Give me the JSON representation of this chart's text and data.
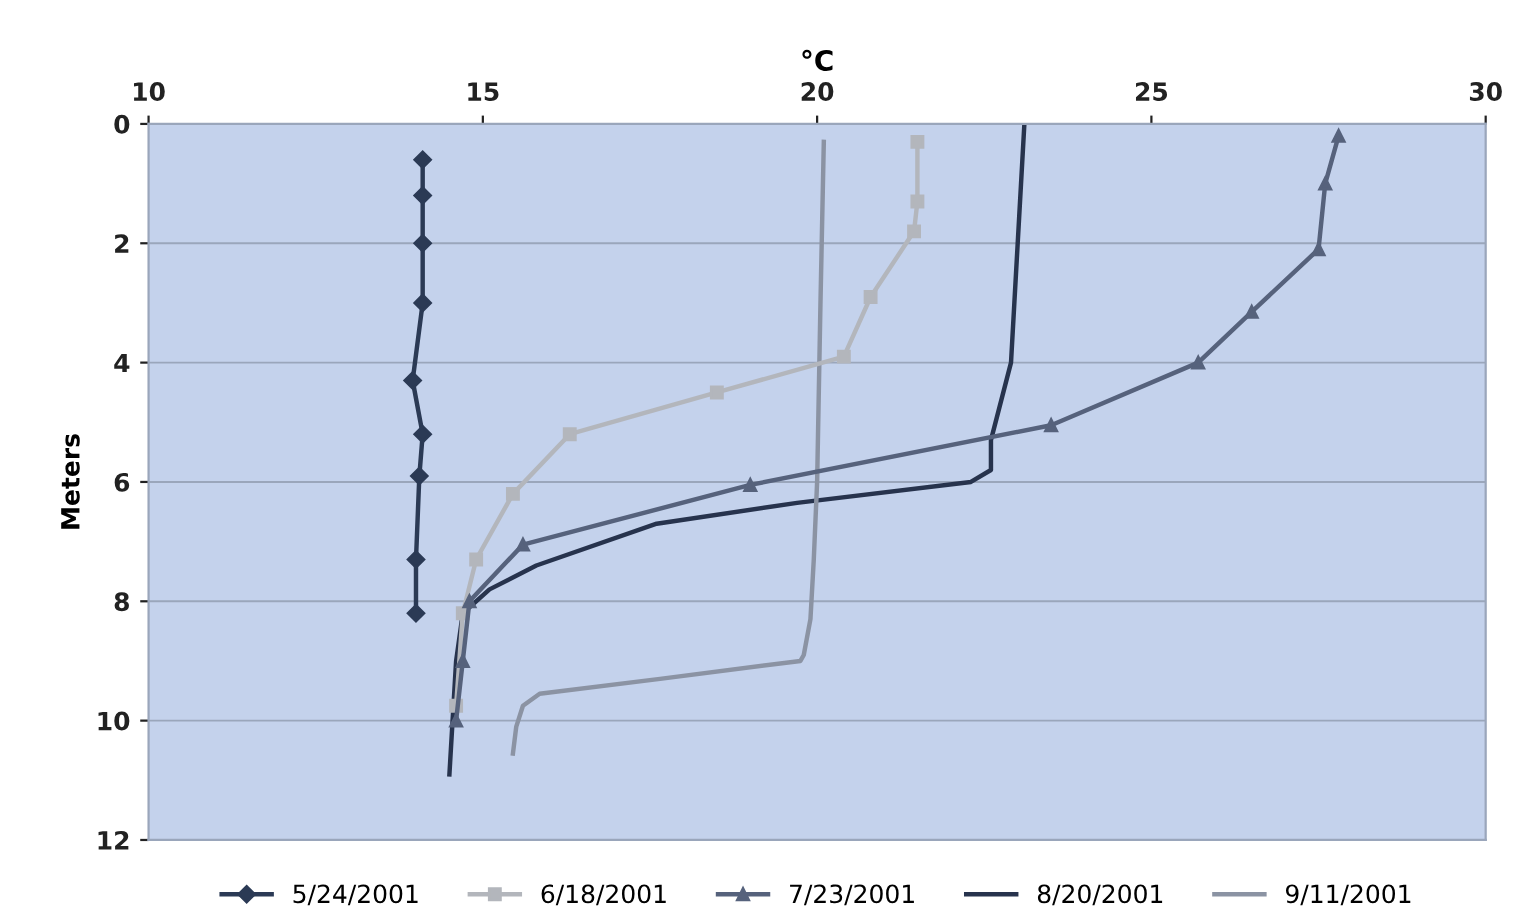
{
  "chart_data": {
    "type": "line",
    "xlabel": "°C",
    "ylabel": "Meters",
    "xlim": [
      10,
      30
    ],
    "xticks": [
      10,
      15,
      20,
      25,
      30
    ],
    "ylim": [
      12,
      0
    ],
    "yticks": [
      0,
      2,
      4,
      6,
      8,
      10,
      12
    ],
    "grid": "y",
    "legend": "bottom",
    "series": [
      {
        "name": "5/24/2001",
        "color": "#2b3a55",
        "marker": "diamond",
        "x": [
          14.1,
          14.1,
          14.1,
          14.1,
          13.95,
          14.1,
          14.05,
          14.0,
          14.0
        ],
        "values": [
          0.6,
          1.2,
          2.0,
          3.0,
          4.3,
          5.2,
          5.9,
          7.3,
          8.2
        ]
      },
      {
        "name": "6/18/2001",
        "color": "#b3b6bc",
        "marker": "square",
        "x": [
          21.5,
          21.5,
          21.45,
          20.8,
          20.4,
          18.5,
          16.3,
          15.45,
          14.9,
          14.7,
          14.6
        ],
        "values": [
          0.3,
          1.3,
          1.8,
          2.9,
          3.9,
          4.5,
          5.2,
          6.2,
          7.3,
          8.2,
          9.75
        ]
      },
      {
        "name": "7/23/2001",
        "color": "#56627c",
        "marker": "triangle",
        "x": [
          27.8,
          27.6,
          27.5,
          26.5,
          25.7,
          23.5,
          19.0,
          15.6,
          14.8,
          14.7,
          14.6
        ],
        "values": [
          0.2,
          1.0,
          2.1,
          3.15,
          4.0,
          5.05,
          6.05,
          7.05,
          8.0,
          9.0,
          10.0
        ]
      },
      {
        "name": "8/20/2001",
        "color": "#27334d",
        "marker": "none",
        "x": [
          23.1,
          23.0,
          22.9,
          22.6,
          22.6,
          22.3,
          19.7,
          17.6,
          15.8,
          15.1,
          14.7,
          14.6,
          14.5
        ],
        "values": [
          0.0,
          2.0,
          4.0,
          5.3,
          5.8,
          6.0,
          6.35,
          6.7,
          7.4,
          7.8,
          8.2,
          9.0,
          10.9
        ]
      },
      {
        "name": "9/11/2001",
        "color": "#8b93a3",
        "marker": "none",
        "x": [
          20.1,
          20.05,
          20.0,
          19.95,
          19.9,
          19.8,
          19.75,
          17.65,
          15.85,
          15.6,
          15.5,
          15.45
        ],
        "values": [
          0.3,
          3.0,
          6.0,
          7.3,
          8.3,
          8.9,
          9.0,
          9.3,
          9.55,
          9.75,
          10.1,
          10.55
        ]
      }
    ]
  }
}
